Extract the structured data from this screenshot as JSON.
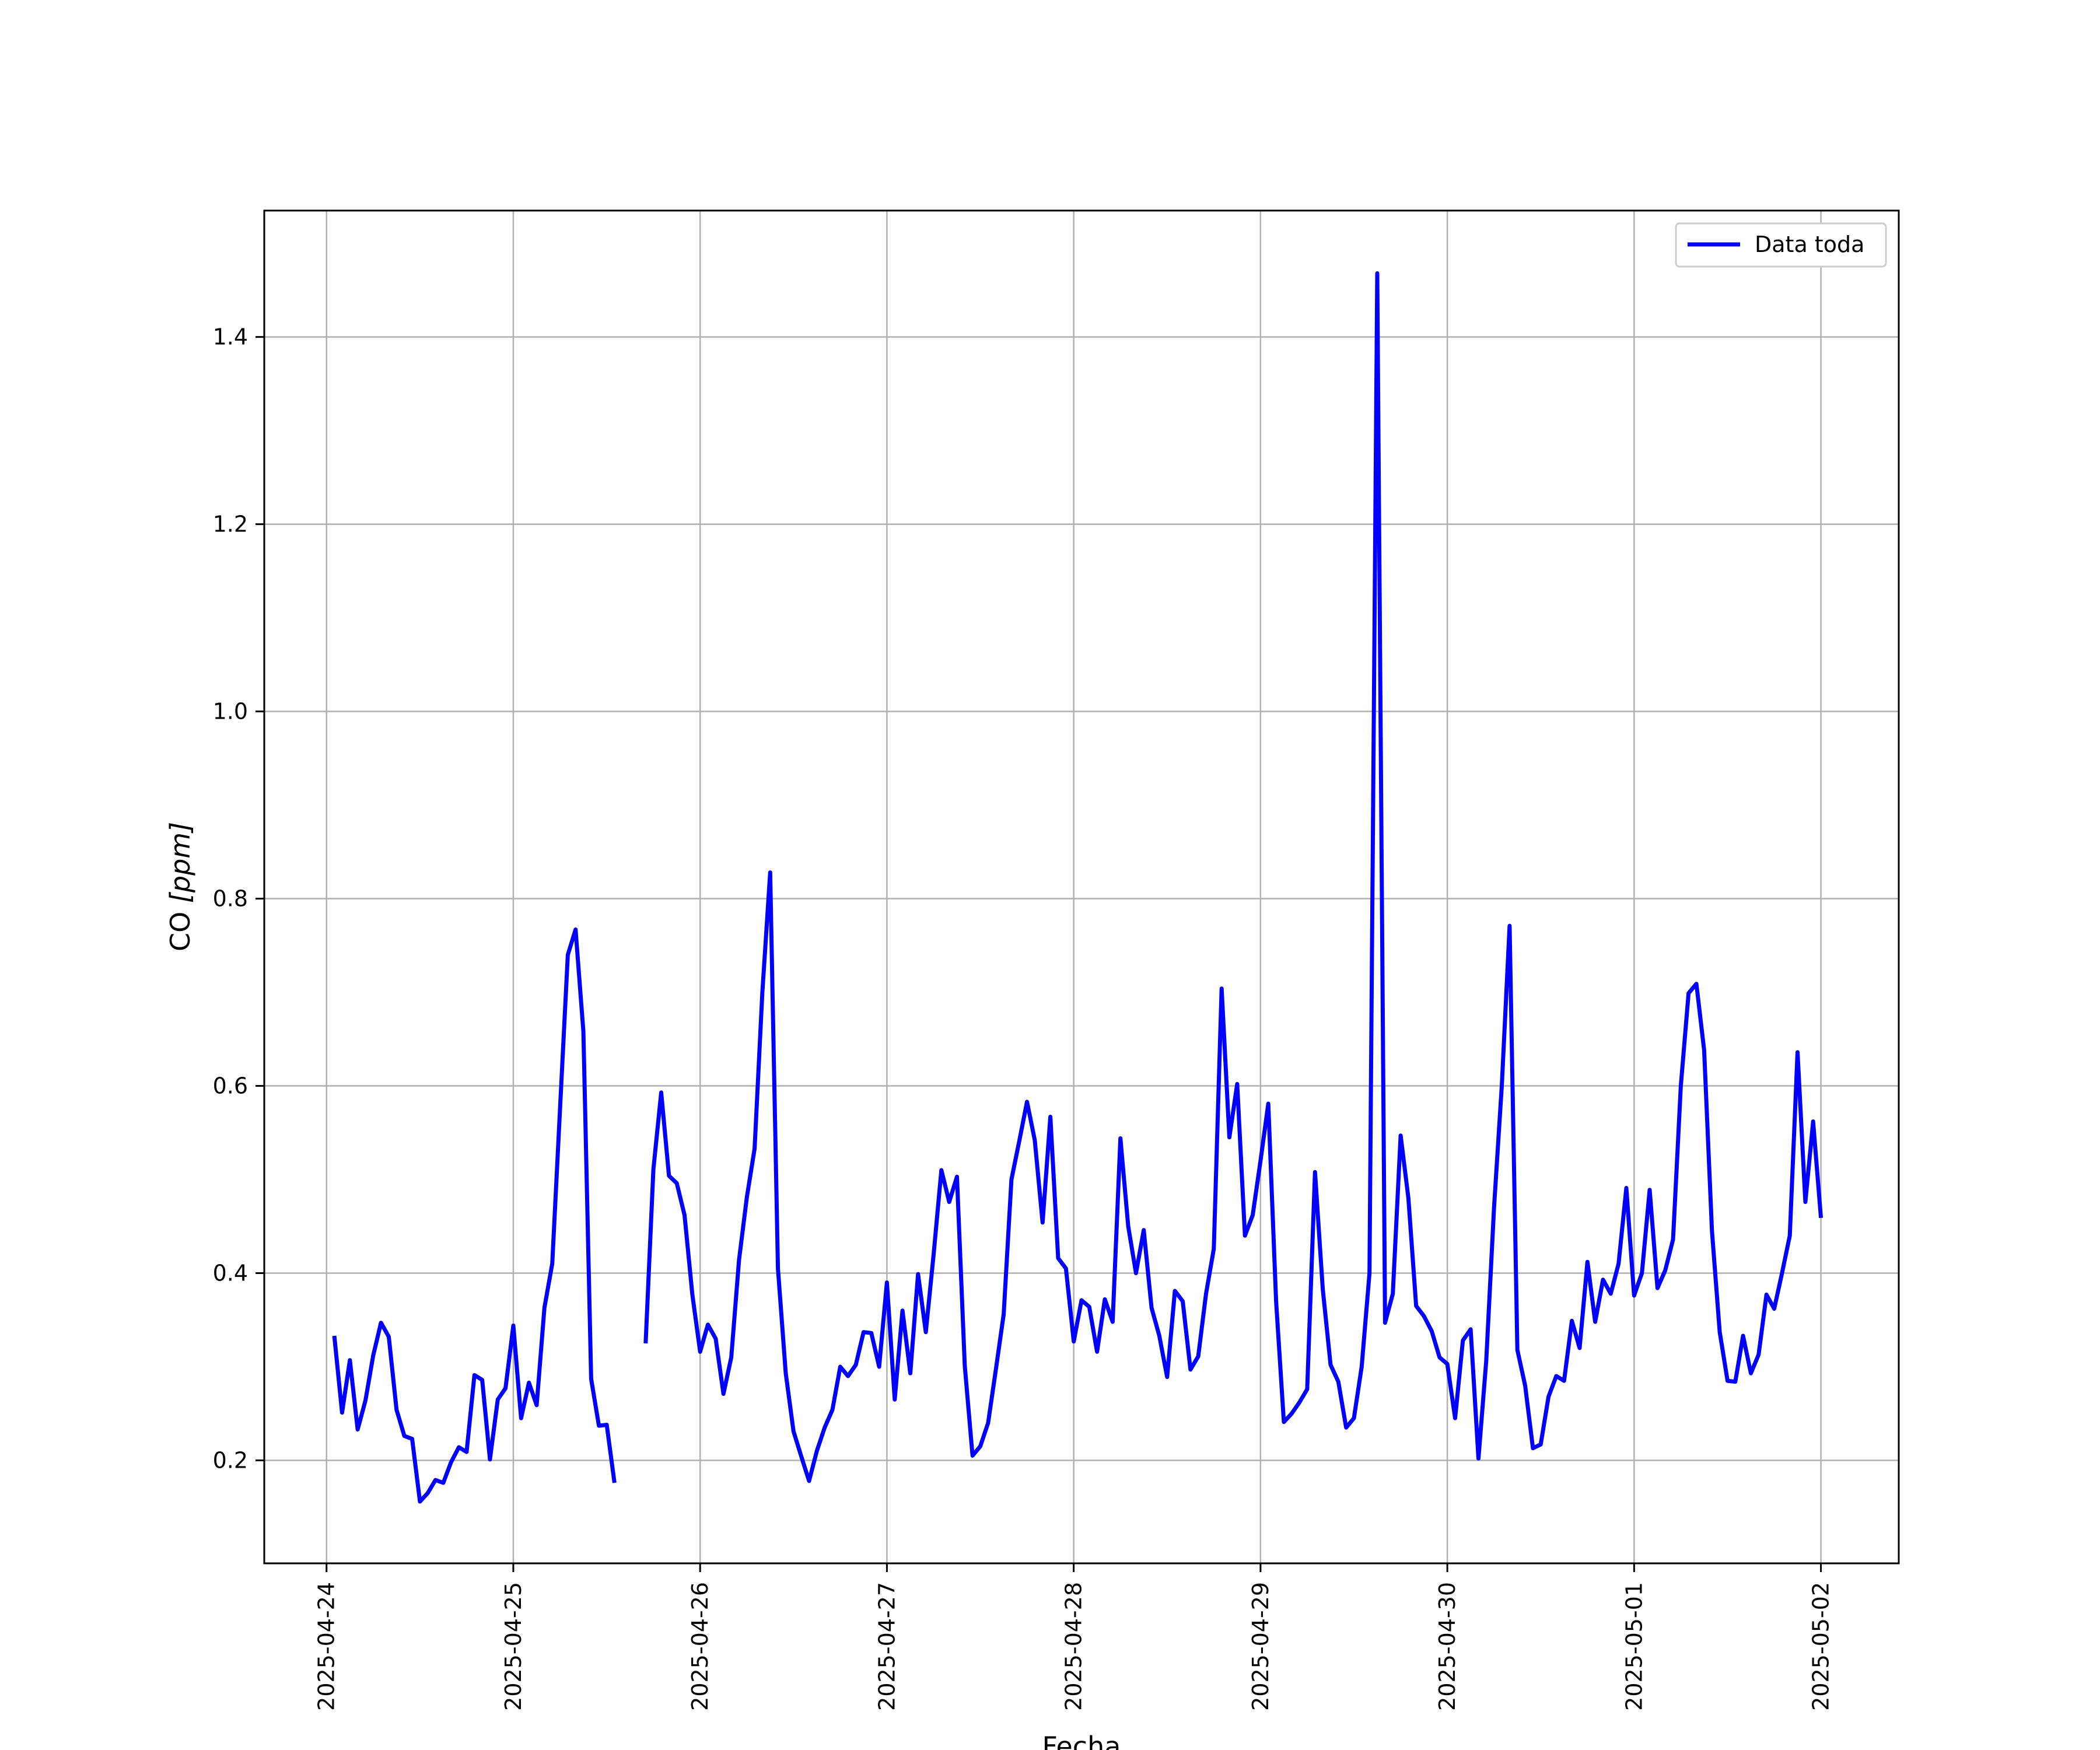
{
  "chart_data": {
    "type": "line",
    "xlabel": "Fecha",
    "ylabel_text": "CO ",
    "ylabel_unit": "[ppm]",
    "x_ticks": [
      "2025-04-24",
      "2025-04-25",
      "2025-04-26",
      "2025-04-27",
      "2025-04-28",
      "2025-04-29",
      "2025-04-30",
      "2025-05-01",
      "2025-05-02"
    ],
    "y_ticks": [
      "0.2",
      "0.4",
      "0.6",
      "0.8",
      "1.0",
      "1.2",
      "1.4"
    ],
    "xlim": [
      "2025-04-23 16:00",
      "2025-05-02 10:00"
    ],
    "ylim": [
      0.09,
      1.535
    ],
    "grid": true,
    "legend_position": "top-right",
    "line_color": "#0000ff",
    "series": [
      {
        "name": "Data toda",
        "segments": [
          [
            [
              "2025-04-24 01:00",
              0.333
            ],
            [
              "2025-04-24 02:00",
              0.251
            ],
            [
              "2025-04-24 03:00",
              0.307
            ],
            [
              "2025-04-24 04:00",
              0.233
            ],
            [
              "2025-04-24 05:00",
              0.264
            ],
            [
              "2025-04-24 06:00",
              0.312
            ],
            [
              "2025-04-24 07:00",
              0.347
            ],
            [
              "2025-04-24 08:00",
              0.332
            ],
            [
              "2025-04-24 09:00",
              0.254
            ],
            [
              "2025-04-24 10:00",
              0.226
            ],
            [
              "2025-04-24 11:00",
              0.223
            ],
            [
              "2025-04-24 12:00",
              0.156
            ],
            [
              "2025-04-24 13:00",
              0.165
            ],
            [
              "2025-04-24 14:00",
              0.179
            ],
            [
              "2025-04-24 15:00",
              0.176
            ],
            [
              "2025-04-24 16:00",
              0.198
            ],
            [
              "2025-04-24 17:00",
              0.214
            ],
            [
              "2025-04-24 18:00",
              0.209
            ],
            [
              "2025-04-24 19:00",
              0.291
            ],
            [
              "2025-04-24 20:00",
              0.286
            ],
            [
              "2025-04-24 21:00",
              0.201
            ],
            [
              "2025-04-24 22:00",
              0.265
            ],
            [
              "2025-04-24 23:00",
              0.277
            ],
            [
              "2025-04-25 00:00",
              0.344
            ],
            [
              "2025-04-25 01:00",
              0.245
            ],
            [
              "2025-04-25 02:00",
              0.283
            ],
            [
              "2025-04-25 03:00",
              0.259
            ],
            [
              "2025-04-25 04:00",
              0.363
            ],
            [
              "2025-04-25 05:00",
              0.41
            ],
            [
              "2025-04-25 06:00",
              0.575
            ],
            [
              "2025-04-25 07:00",
              0.74
            ],
            [
              "2025-04-25 08:00",
              0.767
            ],
            [
              "2025-04-25 09:00",
              0.658
            ],
            [
              "2025-04-25 10:00",
              0.287
            ],
            [
              "2025-04-25 11:00",
              0.237
            ],
            [
              "2025-04-25 12:00",
              0.238
            ],
            [
              "2025-04-25 13:00",
              0.176
            ]
          ],
          [
            [
              "2025-04-25 17:00",
              0.325
            ],
            [
              "2025-04-25 18:00",
              0.511
            ],
            [
              "2025-04-25 19:00",
              0.593
            ],
            [
              "2025-04-25 20:00",
              0.504
            ],
            [
              "2025-04-25 21:00",
              0.496
            ],
            [
              "2025-04-25 22:00",
              0.462
            ],
            [
              "2025-04-25 23:00",
              0.377
            ],
            [
              "2025-04-26 00:00",
              0.316
            ],
            [
              "2025-04-26 01:00",
              0.345
            ],
            [
              "2025-04-26 02:00",
              0.33
            ],
            [
              "2025-04-26 03:00",
              0.271
            ],
            [
              "2025-04-26 04:00",
              0.31
            ],
            [
              "2025-04-26 05:00",
              0.414
            ],
            [
              "2025-04-26 06:00",
              0.481
            ],
            [
              "2025-04-26 07:00",
              0.533
            ],
            [
              "2025-04-26 08:00",
              0.7
            ],
            [
              "2025-04-26 09:00",
              0.828
            ],
            [
              "2025-04-26 10:00",
              0.405
            ],
            [
              "2025-04-26 11:00",
              0.293
            ],
            [
              "2025-04-26 12:00",
              0.231
            ],
            [
              "2025-04-26 13:00",
              0.204
            ],
            [
              "2025-04-26 14:00",
              0.178
            ],
            [
              "2025-04-26 15:00",
              0.21
            ],
            [
              "2025-04-26 16:00",
              0.235
            ],
            [
              "2025-04-26 17:00",
              0.254
            ],
            [
              "2025-04-26 18:00",
              0.3
            ],
            [
              "2025-04-26 19:00",
              0.29
            ],
            [
              "2025-04-26 20:00",
              0.302
            ],
            [
              "2025-04-26 21:00",
              0.337
            ],
            [
              "2025-04-26 22:00",
              0.336
            ],
            [
              "2025-04-26 23:00",
              0.3
            ],
            [
              "2025-04-27 00:00",
              0.39
            ],
            [
              "2025-04-27 01:00",
              0.265
            ],
            [
              "2025-04-27 02:00",
              0.36
            ],
            [
              "2025-04-27 03:00",
              0.293
            ],
            [
              "2025-04-27 04:00",
              0.399
            ],
            [
              "2025-04-27 05:00",
              0.337
            ],
            [
              "2025-04-27 06:00",
              0.42
            ],
            [
              "2025-04-27 07:00",
              0.51
            ],
            [
              "2025-04-27 08:00",
              0.476
            ],
            [
              "2025-04-27 09:00",
              0.503
            ],
            [
              "2025-04-27 10:00",
              0.301
            ],
            [
              "2025-04-27 11:00",
              0.205
            ],
            [
              "2025-04-27 12:00",
              0.215
            ],
            [
              "2025-04-27 13:00",
              0.24
            ],
            [
              "2025-04-27 14:00",
              0.297
            ],
            [
              "2025-04-27 15:00",
              0.356
            ],
            [
              "2025-04-27 16:00",
              0.5
            ],
            [
              "2025-04-27 17:00",
              0.541
            ],
            [
              "2025-04-27 18:00",
              0.583
            ],
            [
              "2025-04-27 19:00",
              0.542
            ],
            [
              "2025-04-27 20:00",
              0.454
            ],
            [
              "2025-04-27 21:00",
              0.567
            ],
            [
              "2025-04-27 22:00",
              0.416
            ],
            [
              "2025-04-27 23:00",
              0.405
            ],
            [
              "2025-04-28 00:00",
              0.327
            ],
            [
              "2025-04-28 01:00",
              0.371
            ],
            [
              "2025-04-28 02:00",
              0.364
            ],
            [
              "2025-04-28 03:00",
              0.316
            ],
            [
              "2025-04-28 04:00",
              0.372
            ],
            [
              "2025-04-28 05:00",
              0.348
            ],
            [
              "2025-04-28 06:00",
              0.544
            ],
            [
              "2025-04-28 07:00",
              0.45
            ],
            [
              "2025-04-28 08:00",
              0.4
            ],
            [
              "2025-04-28 09:00",
              0.446
            ],
            [
              "2025-04-28 10:00",
              0.363
            ],
            [
              "2025-04-28 11:00",
              0.333
            ],
            [
              "2025-04-28 12:00",
              0.289
            ],
            [
              "2025-04-28 13:00",
              0.381
            ],
            [
              "2025-04-28 14:00",
              0.37
            ],
            [
              "2025-04-28 15:00",
              0.297
            ],
            [
              "2025-04-28 16:00",
              0.311
            ],
            [
              "2025-04-28 17:00",
              0.378
            ],
            [
              "2025-04-28 18:00",
              0.426
            ],
            [
              "2025-04-28 19:00",
              0.704
            ],
            [
              "2025-04-28 20:00",
              0.545
            ],
            [
              "2025-04-28 21:00",
              0.602
            ],
            [
              "2025-04-28 22:00",
              0.44
            ],
            [
              "2025-04-28 23:00",
              0.462
            ],
            [
              "2025-04-29 00:00",
              0.52
            ],
            [
              "2025-04-29 01:00",
              0.581
            ],
            [
              "2025-04-29 02:00",
              0.37
            ],
            [
              "2025-04-29 03:00",
              0.241
            ],
            [
              "2025-04-29 04:00",
              0.25
            ],
            [
              "2025-04-29 05:00",
              0.262
            ],
            [
              "2025-04-29 06:00",
              0.276
            ],
            [
              "2025-04-29 07:00",
              0.508
            ],
            [
              "2025-04-29 08:00",
              0.383
            ],
            [
              "2025-04-29 09:00",
              0.302
            ],
            [
              "2025-04-29 10:00",
              0.284
            ],
            [
              "2025-04-29 11:00",
              0.235
            ],
            [
              "2025-04-29 12:00",
              0.245
            ],
            [
              "2025-04-29 13:00",
              0.3
            ],
            [
              "2025-04-29 14:00",
              0.4
            ],
            [
              "2025-04-29 15:00",
              1.468
            ],
            [
              "2025-04-29 16:00",
              0.347
            ],
            [
              "2025-04-29 17:00",
              0.378
            ],
            [
              "2025-04-29 18:00",
              0.547
            ],
            [
              "2025-04-29 19:00",
              0.48
            ],
            [
              "2025-04-29 20:00",
              0.365
            ],
            [
              "2025-04-29 21:00",
              0.354
            ],
            [
              "2025-04-29 22:00",
              0.338
            ],
            [
              "2025-04-29 23:00",
              0.31
            ],
            [
              "2025-04-30 00:00",
              0.303
            ],
            [
              "2025-04-30 01:00",
              0.245
            ],
            [
              "2025-04-30 02:00",
              0.328
            ],
            [
              "2025-04-30 03:00",
              0.34
            ],
            [
              "2025-04-30 04:00",
              0.202
            ],
            [
              "2025-04-30 05:00",
              0.306
            ],
            [
              "2025-04-30 06:00",
              0.47
            ],
            [
              "2025-04-30 07:00",
              0.6
            ],
            [
              "2025-04-30 08:00",
              0.771
            ],
            [
              "2025-04-30 09:00",
              0.318
            ],
            [
              "2025-04-30 10:00",
              0.28
            ],
            [
              "2025-04-30 11:00",
              0.213
            ],
            [
              "2025-04-30 12:00",
              0.217
            ],
            [
              "2025-04-30 13:00",
              0.268
            ],
            [
              "2025-04-30 14:00",
              0.29
            ],
            [
              "2025-04-30 15:00",
              0.285
            ],
            [
              "2025-04-30 16:00",
              0.349
            ],
            [
              "2025-04-30 17:00",
              0.32
            ],
            [
              "2025-04-30 18:00",
              0.412
            ],
            [
              "2025-04-30 19:00",
              0.348
            ],
            [
              "2025-04-30 20:00",
              0.393
            ],
            [
              "2025-04-30 21:00",
              0.378
            ],
            [
              "2025-04-30 22:00",
              0.41
            ],
            [
              "2025-04-30 23:00",
              0.491
            ],
            [
              "2025-05-01 00:00",
              0.376
            ],
            [
              "2025-05-01 01:00",
              0.4
            ],
            [
              "2025-05-01 02:00",
              0.489
            ],
            [
              "2025-05-01 03:00",
              0.384
            ],
            [
              "2025-05-01 04:00",
              0.403
            ],
            [
              "2025-05-01 05:00",
              0.436
            ],
            [
              "2025-05-01 06:00",
              0.6
            ],
            [
              "2025-05-01 07:00",
              0.699
            ],
            [
              "2025-05-01 08:00",
              0.709
            ],
            [
              "2025-05-01 09:00",
              0.638
            ],
            [
              "2025-05-01 10:00",
              0.445
            ],
            [
              "2025-05-01 11:00",
              0.337
            ],
            [
              "2025-05-01 12:00",
              0.285
            ],
            [
              "2025-05-01 13:00",
              0.284
            ],
            [
              "2025-05-01 14:00",
              0.333
            ],
            [
              "2025-05-01 15:00",
              0.293
            ],
            [
              "2025-05-01 16:00",
              0.313
            ],
            [
              "2025-05-01 17:00",
              0.377
            ],
            [
              "2025-05-01 18:00",
              0.362
            ],
            [
              "2025-05-01 19:00",
              0.4
            ],
            [
              "2025-05-01 20:00",
              0.44
            ],
            [
              "2025-05-01 21:00",
              0.636
            ],
            [
              "2025-05-01 22:00",
              0.476
            ],
            [
              "2025-05-01 23:00",
              0.562
            ],
            [
              "2025-05-02 00:00",
              0.459
            ]
          ]
        ]
      }
    ]
  }
}
